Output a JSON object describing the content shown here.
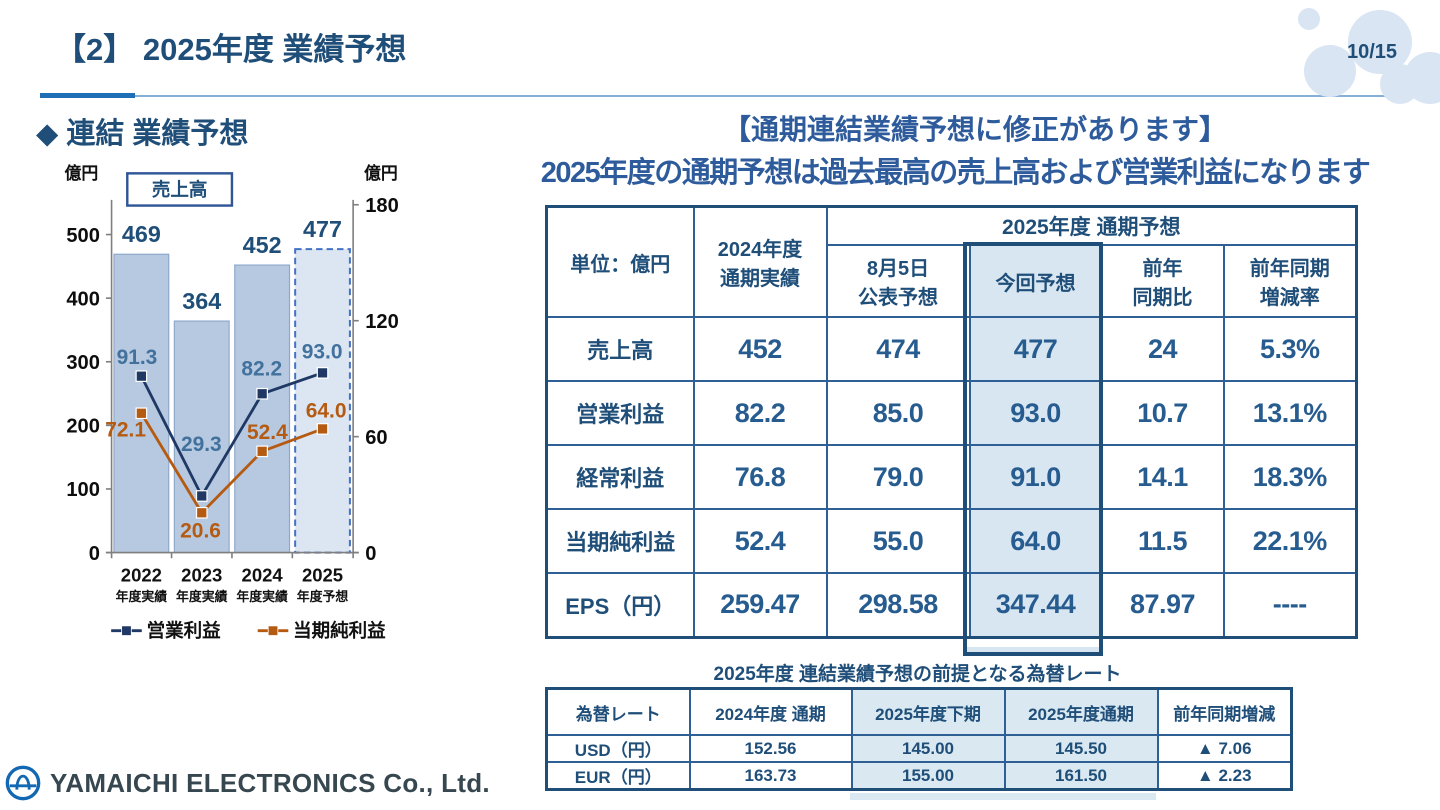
{
  "slide": {
    "title": "【2】 2025年度 業績予想",
    "page_number": "10/15"
  },
  "left_panel": {
    "section_title": "◆ 連結 業績予想",
    "logo_text": "YAMAICHI ELECTRONICS Co., Ltd."
  },
  "chart_data": {
    "type": "bar+line combo",
    "title_box": "売上高",
    "left_axis_unit": "億円",
    "right_axis_unit": "億円",
    "left_axis_ticks": [
      0,
      100,
      200,
      300,
      400,
      500
    ],
    "right_axis_ticks": [
      0,
      60,
      120,
      180
    ],
    "left_axis_range": [
      0,
      555
    ],
    "right_axis_range": [
      0,
      182
    ],
    "categories": [
      "2022",
      "2023",
      "2024",
      "2025"
    ],
    "category_sublabels": [
      "年度実績",
      "年度実績",
      "年度実績",
      "年度予想"
    ],
    "bars": {
      "name": "売上高",
      "axis": "left",
      "values": [
        469,
        364,
        452,
        477
      ],
      "forecast_last": true
    },
    "lines": [
      {
        "name": "営業利益",
        "axis": "right",
        "values": [
          91.3,
          29.3,
          82.2,
          93.0
        ]
      },
      {
        "name": "当期純利益",
        "axis": "right",
        "values": [
          72.1,
          20.6,
          52.4,
          64.0
        ]
      }
    ],
    "legend": [
      "営業利益",
      "当期純利益"
    ]
  },
  "right_panel": {
    "headline": "【通期連結業績予想に修正があります】",
    "subheadline": "2025年度の通期予想は過去最高の売上高および営業利益になります",
    "main_table": {
      "unit_label": "単位：億円",
      "actual_header": "2024年度\n通期実績",
      "group_header": "2025年度 通期予想",
      "sub_headers": [
        "8月5日\n公表予想",
        "今回予想",
        "前年\n同期比",
        "前年同期\n増減率"
      ],
      "rows": [
        {
          "label": "売上高",
          "values": [
            "452",
            "474",
            "477",
            "24",
            "5.3%"
          ]
        },
        {
          "label": "営業利益",
          "values": [
            "82.2",
            "85.0",
            "93.0",
            "10.7",
            "13.1%"
          ]
        },
        {
          "label": "経常利益",
          "values": [
            "76.8",
            "79.0",
            "91.0",
            "14.1",
            "18.3%"
          ]
        },
        {
          "label": "当期純利益",
          "values": [
            "52.4",
            "55.0",
            "64.0",
            "11.5",
            "22.1%"
          ]
        },
        {
          "label": "EPS（円）",
          "values": [
            "259.47",
            "298.58",
            "347.44",
            "87.97",
            "----"
          ]
        }
      ]
    },
    "fx_table": {
      "title": "2025年度 連結業績予想の前提となる為替レート",
      "headers": [
        "為替レート",
        "2024年度 通期",
        "2025年度下期",
        "2025年度通期",
        "前年同期増減"
      ],
      "rows": [
        {
          "label": "USD（円）",
          "values": [
            "152.56",
            "145.00",
            "145.50",
            "▲ 7.06"
          ]
        },
        {
          "label": "EUR（円）",
          "values": [
            "163.73",
            "155.00",
            "161.50",
            "▲ 2.23"
          ]
        }
      ]
    }
  },
  "colors": {
    "navy": "#1F4E79",
    "headline_blue": "#2E5B9B",
    "accent_bright": "#1E6FB6",
    "bar_fill": "#B7C9E1",
    "bar_stroke": "#8FA9CB",
    "bar_forecast_fill": "#DCE6F3",
    "bar_forecast_stroke": "#4472C4",
    "line_operating": "#1F3864",
    "line_net": "#B55A11",
    "operating_label": "#41719C",
    "highlight_fill": "#D7E6F0",
    "fx_highlight_fill": "#D9E8F1",
    "bubble": "#D9E5F3",
    "logo_blue": "#1268B3"
  }
}
